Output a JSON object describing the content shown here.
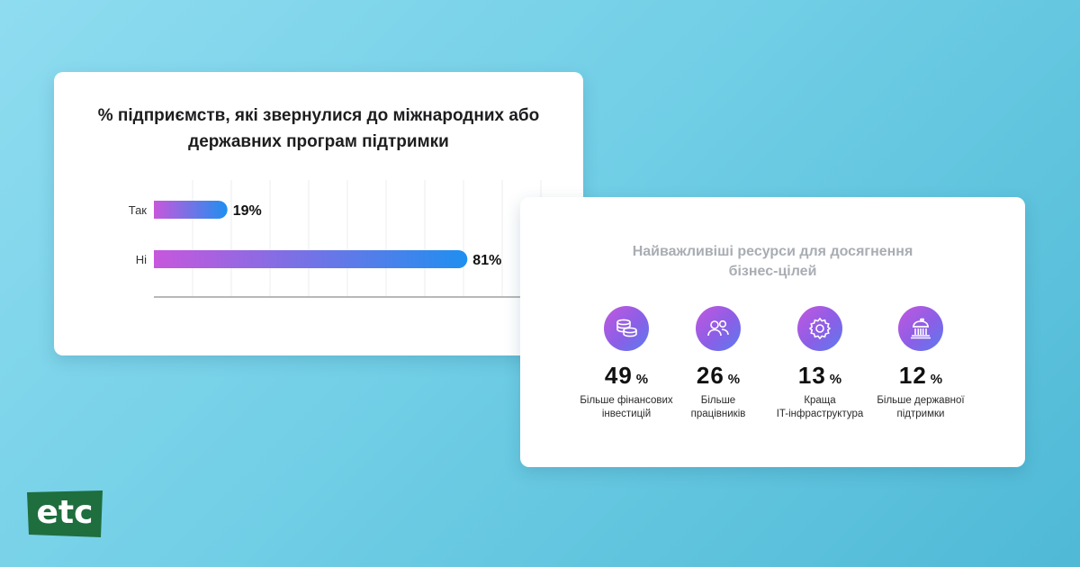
{
  "colors": {
    "background_start": "#8fdcf0",
    "background_end": "#4fb9d6",
    "bar_gradient_start": "#c757dc",
    "bar_gradient_end": "#1f8ff0",
    "logo_green": "#1f6e3e"
  },
  "chart_data": {
    "type": "bar",
    "orientation": "horizontal",
    "title_lines": [
      "% підприємств, які звернулися до міжнародних або",
      "державних програм підтримки"
    ],
    "categories": [
      "Так",
      "Ні"
    ],
    "values": [
      19,
      81
    ],
    "value_labels": [
      "19%",
      "81%"
    ],
    "xlim": [
      0,
      100
    ],
    "grid": true,
    "legend": "none"
  },
  "resources": {
    "title_lines": [
      "Найважливіші ресурси для досягнення",
      "бізнес-цілей"
    ],
    "items": [
      {
        "icon": "coins-icon",
        "value": "49",
        "unit": "%",
        "label_lines": [
          "Більше фінансових",
          "інвестицій"
        ]
      },
      {
        "icon": "people-icon",
        "value": "26",
        "unit": "%",
        "label_lines": [
          "Більше",
          "працівників"
        ]
      },
      {
        "icon": "gear-icon",
        "value": "13",
        "unit": "%",
        "label_lines": [
          "Краща",
          "IT-інфраструктура"
        ]
      },
      {
        "icon": "government-building-icon",
        "value": "12",
        "unit": "%",
        "label_lines": [
          "Більше державної",
          "підтримки"
        ]
      }
    ]
  },
  "logo": {
    "text": "etc",
    "icon": "etc-logo"
  }
}
